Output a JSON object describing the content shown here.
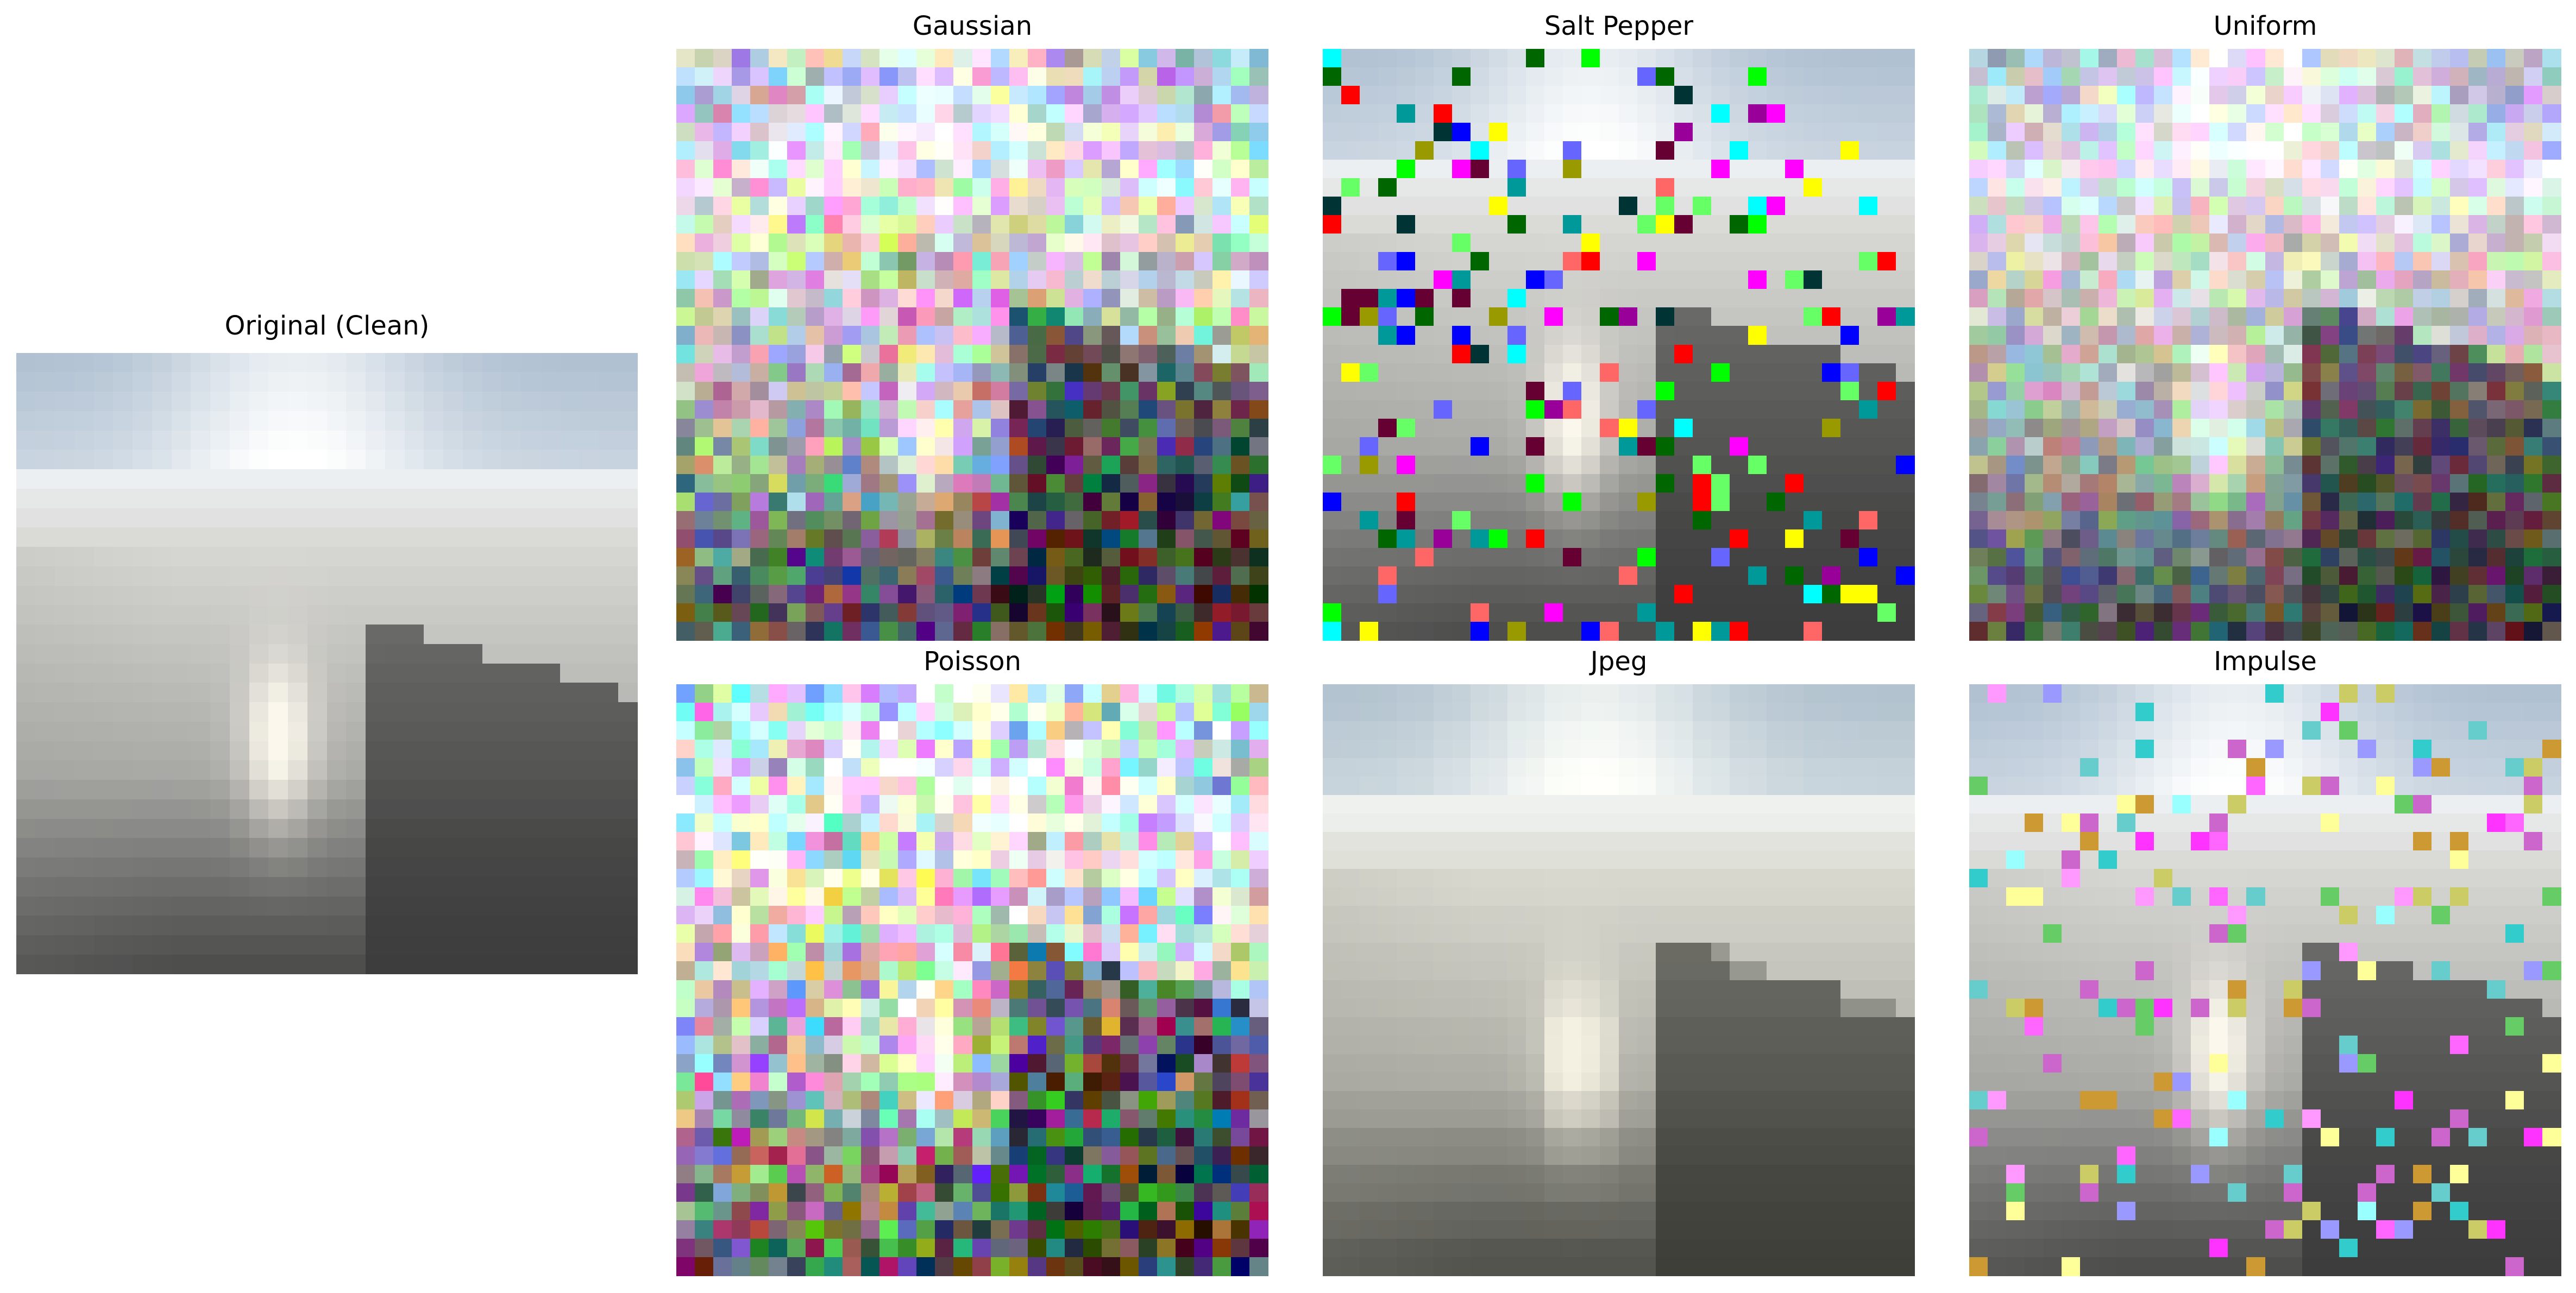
{
  "figure": {
    "panels": [
      {
        "key": "original",
        "title": "Original (Clean)",
        "noise": "none"
      },
      {
        "key": "gaussian",
        "title": "Gaussian",
        "noise": "gaussian"
      },
      {
        "key": "saltpepper",
        "title": "Salt Pepper",
        "noise": "saltpepper"
      },
      {
        "key": "uniform",
        "title": "Uniform",
        "noise": "uniform"
      },
      {
        "key": "poisson",
        "title": "Poisson",
        "noise": "poisson"
      },
      {
        "key": "jpeg",
        "title": "Jpeg",
        "noise": "jpeg"
      },
      {
        "key": "impulse",
        "title": "Impulse",
        "noise": "impulse"
      }
    ],
    "image_grid": 32,
    "scene_colors": {
      "sky_top": "#8fa6bf",
      "sky_bright": "#eef2f5",
      "mist": "#d8d8d4",
      "mountain_dark": "#3a3b3a",
      "waterfall": "#fbf7ec",
      "ground": "#2f302f"
    }
  }
}
